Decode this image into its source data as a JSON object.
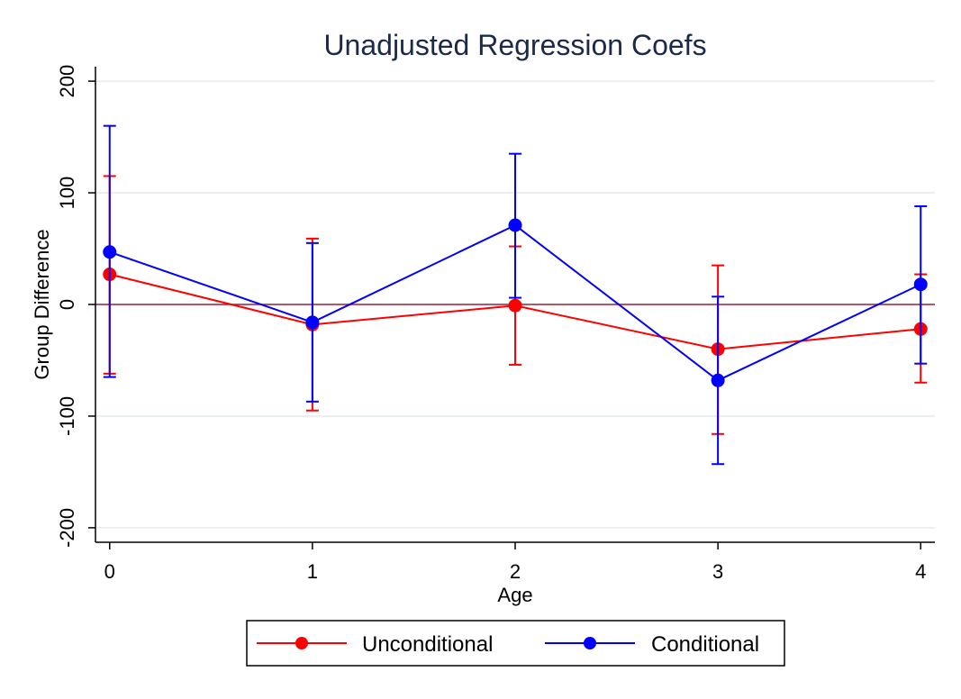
{
  "chart_data": {
    "type": "line",
    "title": "Unadjusted Regression Coefs",
    "xlabel": "Age",
    "ylabel": "Group Difference",
    "x": [
      0,
      1,
      2,
      3,
      4
    ],
    "xticks": [
      "0",
      "1",
      "2",
      "3",
      "4"
    ],
    "yticks": [
      "-200",
      "-100",
      "0",
      "100",
      "200"
    ],
    "ytick_values": [
      -200,
      -100,
      0,
      100,
      200
    ],
    "xlim": [
      -0.07,
      4.07
    ],
    "ylim": [
      -213,
      213
    ],
    "grid": true,
    "reference_line": 0,
    "legend_position": "bottom",
    "series": [
      {
        "name": "Unconditional",
        "color": "#ff0000",
        "values": [
          27,
          -18,
          -1,
          -40,
          -22
        ],
        "ci_low": [
          -62,
          -95,
          -54,
          -116,
          -70
        ],
        "ci_high": [
          115,
          59,
          52,
          35,
          27
        ]
      },
      {
        "name": "Conditional",
        "color": "#0000ff",
        "values": [
          47,
          -16,
          71,
          -68,
          18
        ],
        "ci_low": [
          -65,
          -87,
          6,
          -143,
          -53
        ],
        "ci_high": [
          160,
          55,
          135,
          7,
          88
        ]
      }
    ],
    "colors": {
      "reference_line": "#a0203c",
      "grid": "#e4ecec",
      "title": "#1b2a4a"
    }
  }
}
